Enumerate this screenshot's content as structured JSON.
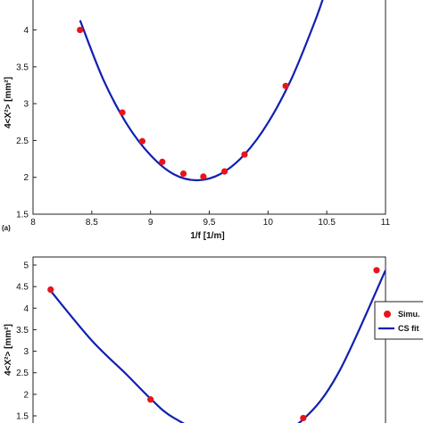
{
  "chart_data": [
    {
      "type": "scatter",
      "panel_label": "(a)",
      "xlabel": "1/f [1/m]",
      "ylabel": "4<X²> [mm²]",
      "xlim": [
        8,
        11
      ],
      "ylim": [
        1.5,
        4.6
      ],
      "x_ticks": [
        "8",
        "8.5",
        "9",
        "9.5",
        "10",
        "10.5",
        "11"
      ],
      "y_ticks": [
        "1.5",
        "2",
        "2.5",
        "3",
        "3.5",
        "4",
        "4.5"
      ],
      "series": [
        {
          "kind": "points",
          "color": "#e8141b",
          "x": [
            8.4,
            8.76,
            8.93,
            9.1,
            9.28,
            9.45,
            9.63,
            9.8,
            10.15
          ],
          "y": [
            4.0,
            2.88,
            2.49,
            2.21,
            2.05,
            2.01,
            2.08,
            2.31,
            3.24
          ]
        },
        {
          "kind": "fit_curve",
          "color": "#1020b0",
          "x": [
            8.4,
            8.6,
            8.8,
            9.0,
            9.2,
            9.4,
            9.6,
            9.8,
            10.0,
            10.2,
            10.4,
            10.5
          ],
          "y": [
            4.13,
            3.32,
            2.72,
            2.3,
            2.04,
            1.96,
            2.05,
            2.31,
            2.74,
            3.34,
            4.12,
            4.58
          ]
        }
      ]
    },
    {
      "type": "scatter",
      "ylabel": "4<X²> [mm²]",
      "xlim": [
        8,
        11
      ],
      "ylim": [
        1.5,
        5
      ],
      "y_ticks": [
        "1.5",
        "2",
        "2.5",
        "3",
        "3.5",
        "4",
        "4.5",
        "5"
      ],
      "legend": {
        "position": "right",
        "entries": [
          "Simu.",
          "CS fit"
        ]
      },
      "series": [
        {
          "name": "Simu.",
          "kind": "points",
          "color": "#e8141b",
          "x": [
            8.15,
            9.0,
            10.3,
            11.0
          ],
          "y": [
            4.43,
            1.88,
            1.45,
            4.88
          ]
        },
        {
          "name": "CS fit",
          "kind": "fit_curve",
          "color": "#1020b0",
          "x": [
            8.15,
            8.5,
            8.8,
            9.0,
            9.2,
            9.6,
            10.0,
            10.3,
            10.6,
            11.0
          ],
          "y": [
            4.4,
            3.25,
            2.45,
            1.9,
            1.45,
            0.95,
            1.0,
            1.42,
            2.5,
            4.88
          ]
        }
      ]
    }
  ]
}
